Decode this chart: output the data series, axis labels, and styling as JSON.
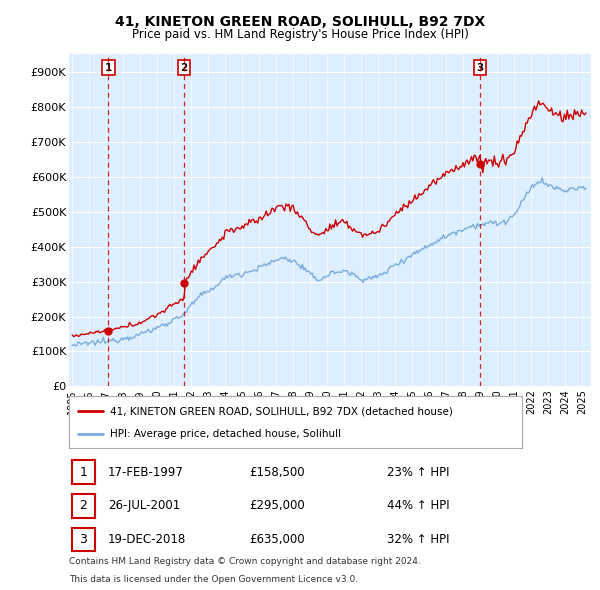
{
  "title": "41, KINETON GREEN ROAD, SOLIHULL, B92 7DX",
  "subtitle": "Price paid vs. HM Land Registry's House Price Index (HPI)",
  "ylabel_ticks": [
    "£0",
    "£100K",
    "£200K",
    "£300K",
    "£400K",
    "£500K",
    "£600K",
    "£700K",
    "£800K",
    "£900K"
  ],
  "ytick_values": [
    0,
    100000,
    200000,
    300000,
    400000,
    500000,
    600000,
    700000,
    800000,
    900000
  ],
  "ylim": [
    0,
    950000
  ],
  "xlim_start": 1994.8,
  "xlim_end": 2025.5,
  "legend_line1": "41, KINETON GREEN ROAD, SOLIHULL, B92 7DX (detached house)",
  "legend_line2": "HPI: Average price, detached house, Solihull",
  "transactions": [
    {
      "label": "1",
      "date": 1997.12,
      "price": 158500,
      "pct": "23%",
      "dir": "↑",
      "date_str": "17-FEB-1997"
    },
    {
      "label": "2",
      "date": 2001.57,
      "price": 295000,
      "pct": "44%",
      "dir": "↑",
      "date_str": "26-JUL-2001"
    },
    {
      "label": "3",
      "date": 2018.97,
      "price": 635000,
      "pct": "32%",
      "dir": "↑",
      "date_str": "19-DEC-2018"
    }
  ],
  "footnote1": "Contains HM Land Registry data © Crown copyright and database right 2024.",
  "footnote2": "This data is licensed under the Open Government Licence v3.0.",
  "color_red": "#cc0000",
  "color_blue": "#7aaddc",
  "color_bg": "#ddeeff",
  "color_grid": "#ffffff",
  "hpi_solihull": {
    "1995.0": 118000,
    "1995.5": 120000,
    "1996.0": 124000,
    "1996.5": 127000,
    "1997.0": 128000,
    "1997.5": 133000,
    "1998.0": 138000,
    "1998.5": 143000,
    "1999.0": 150000,
    "1999.5": 158000,
    "2000.0": 168000,
    "2000.5": 180000,
    "2001.0": 192000,
    "2001.5": 205000,
    "2002.0": 232000,
    "2002.5": 258000,
    "2003.0": 272000,
    "2003.5": 290000,
    "2004.0": 310000,
    "2004.5": 320000,
    "2005.0": 322000,
    "2005.5": 330000,
    "2006.0": 340000,
    "2006.5": 350000,
    "2007.0": 362000,
    "2007.5": 368000,
    "2008.0": 358000,
    "2008.5": 342000,
    "2009.0": 318000,
    "2009.5": 305000,
    "2010.0": 318000,
    "2010.5": 328000,
    "2011.0": 330000,
    "2011.5": 320000,
    "2012.0": 308000,
    "2012.5": 308000,
    "2013.0": 315000,
    "2013.5": 330000,
    "2014.0": 350000,
    "2014.5": 362000,
    "2015.0": 378000,
    "2015.5": 390000,
    "2016.0": 405000,
    "2016.5": 418000,
    "2017.0": 430000,
    "2017.5": 442000,
    "2018.0": 450000,
    "2018.5": 460000,
    "2019.0": 462000,
    "2019.5": 468000,
    "2020.0": 465000,
    "2020.5": 472000,
    "2021.0": 490000,
    "2021.5": 530000,
    "2022.0": 570000,
    "2022.5": 590000,
    "2023.0": 575000,
    "2023.5": 565000,
    "2024.0": 560000,
    "2024.5": 565000,
    "2025.0": 568000
  }
}
